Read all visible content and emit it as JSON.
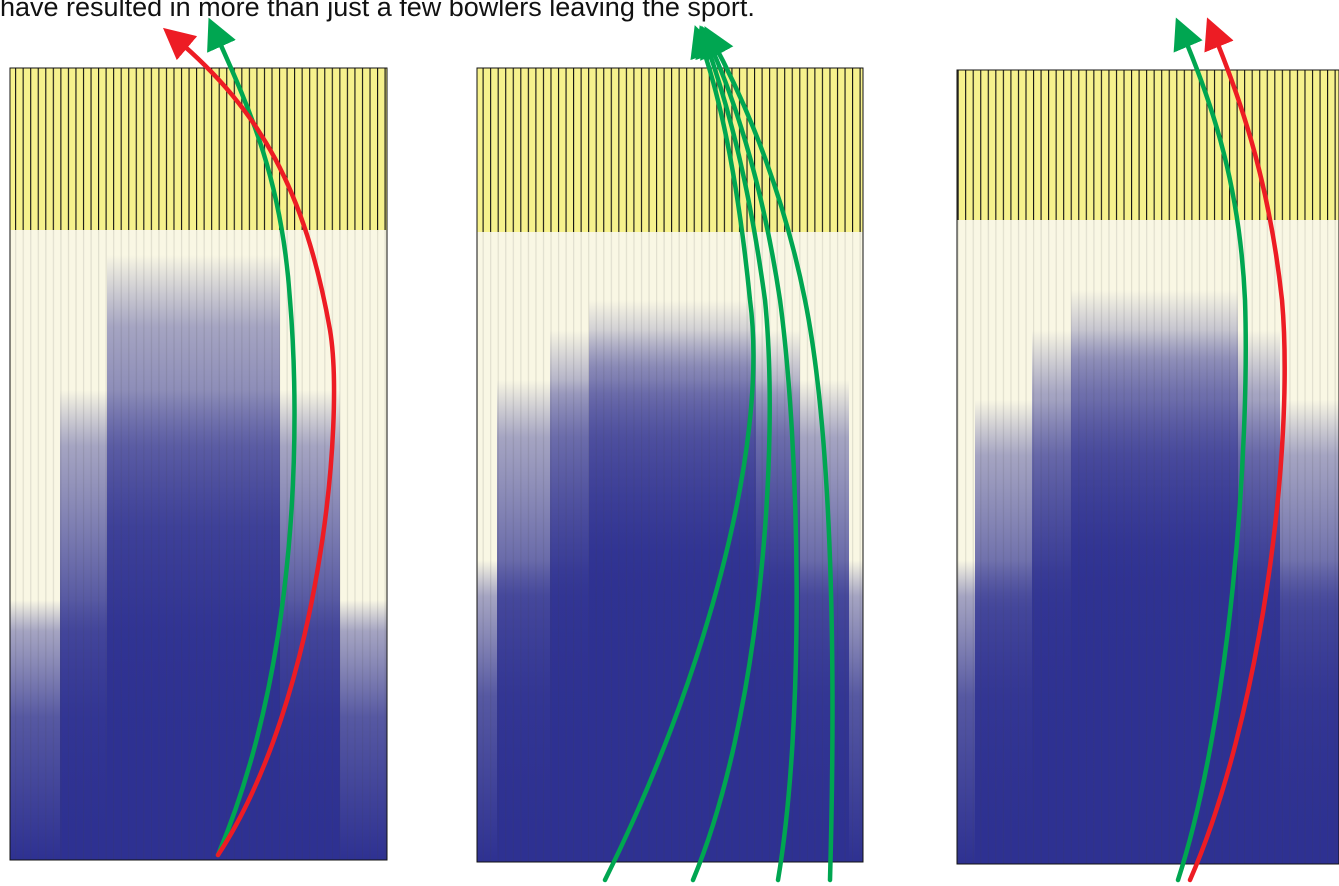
{
  "caption": "have resulted in more than just a few bowlers leaving the sport."
}
